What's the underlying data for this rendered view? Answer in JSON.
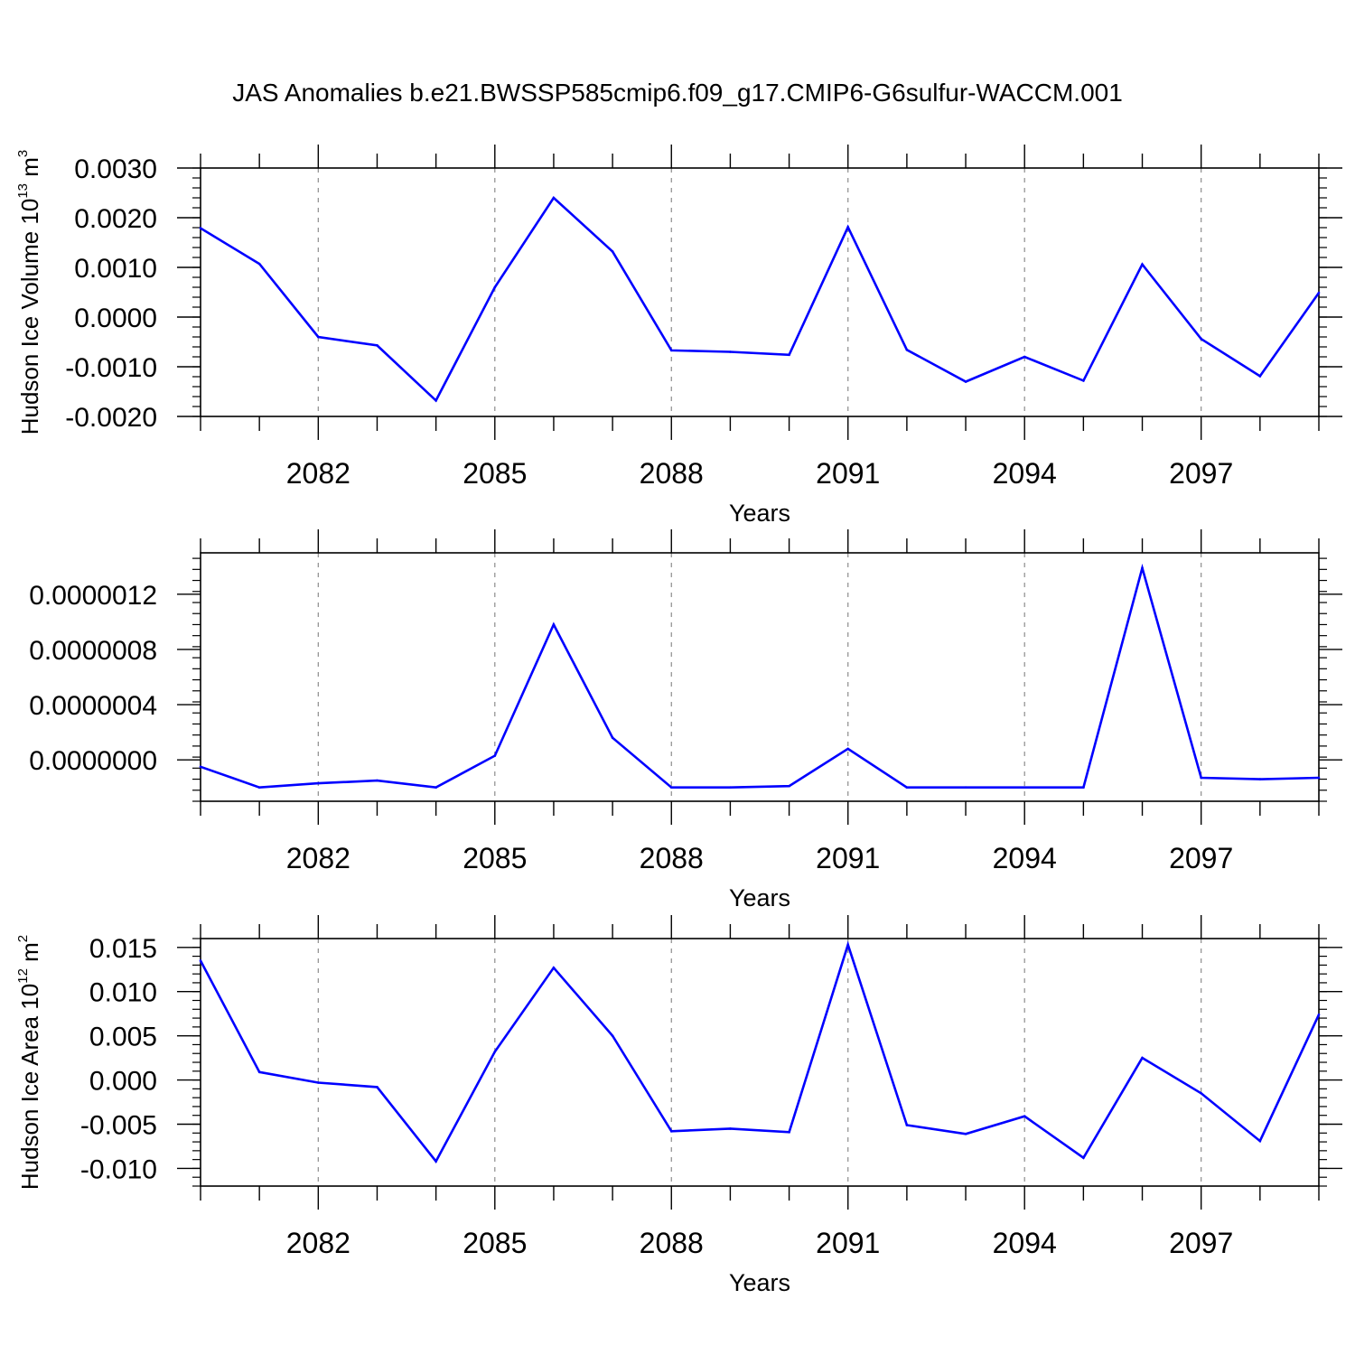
{
  "title": "JAS Anomalies b.e21.BWSSP585cmip6.f09_g17.CMIP6-G6sulfur-WACCM.001",
  "colors": {
    "line": "#0000ff",
    "axis": "#000000",
    "grid": "#8c8c8c"
  },
  "chart_data": [
    {
      "type": "line",
      "xlabel": "Years",
      "ylabel": {
        "text": "Hudson Ice Volume 10",
        "sup1": "13",
        "mid": " m",
        "sup2": "3"
      },
      "xlim": [
        2080,
        2099
      ],
      "ylim": [
        -0.002,
        0.003
      ],
      "xticks": [
        2082,
        2085,
        2088,
        2091,
        2094,
        2097
      ],
      "xtick_labels": [
        "2082",
        "2085",
        "2088",
        "2091",
        "2094",
        "2097"
      ],
      "yticks": [
        -0.002,
        -0.001,
        0.0,
        0.001,
        0.002,
        0.003
      ],
      "ytick_labels": [
        "-0.0020",
        "-0.0010",
        "0.0000",
        "0.0010",
        "0.0020",
        "0.0030"
      ],
      "grid": "vertical dashed at labeled years",
      "x": [
        2080,
        2081,
        2082,
        2083,
        2084,
        2085,
        2086,
        2087,
        2088,
        2089,
        2090,
        2091,
        2092,
        2093,
        2094,
        2095,
        2096,
        2097,
        2098,
        2099
      ],
      "values": [
        0.00179,
        0.00107,
        -0.0004,
        -0.00057,
        -0.00168,
        0.0006,
        0.0024,
        0.00132,
        -0.00067,
        -0.0007,
        -0.00076,
        0.00181,
        -0.00066,
        -0.0013,
        -0.0008,
        -0.00128,
        0.00106,
        -0.00044,
        -0.00119,
        0.00049
      ]
    },
    {
      "type": "line",
      "xlabel": "Years",
      "ylabel": null,
      "xlim": [
        2080,
        2099
      ],
      "ylim": [
        -3e-07,
        1.5e-06
      ],
      "xticks": [
        2082,
        2085,
        2088,
        2091,
        2094,
        2097
      ],
      "xtick_labels": [
        "2082",
        "2085",
        "2088",
        "2091",
        "2094",
        "2097"
      ],
      "yticks": [
        0.0,
        4e-07,
        8e-07,
        1.2e-06
      ],
      "ytick_labels": [
        "0.0000000",
        "0.0000004",
        "0.0000008",
        "0.0000012"
      ],
      "grid": "vertical dashed at labeled years",
      "x": [
        2080,
        2081,
        2082,
        2083,
        2084,
        2085,
        2086,
        2087,
        2088,
        2089,
        2090,
        2091,
        2092,
        2093,
        2094,
        2095,
        2096,
        2097,
        2098,
        2099
      ],
      "values": [
        -5e-08,
        -2e-07,
        -1.7e-07,
        -1.5e-07,
        -2e-07,
        3e-08,
        9.8e-07,
        1.6e-07,
        -2e-07,
        -2e-07,
        -1.9e-07,
        8e-08,
        -2e-07,
        -2e-07,
        -2e-07,
        -2e-07,
        1.39e-06,
        -1.3e-07,
        -1.4e-07,
        -1.3e-07
      ]
    },
    {
      "type": "line",
      "xlabel": "Years",
      "ylabel": {
        "text": "Hudson Ice Area 10",
        "sup1": "12",
        "mid": " m",
        "sup2": "2"
      },
      "xlim": [
        2080,
        2099
      ],
      "ylim": [
        -0.012,
        0.016
      ],
      "xticks": [
        2082,
        2085,
        2088,
        2091,
        2094,
        2097
      ],
      "xtick_labels": [
        "2082",
        "2085",
        "2088",
        "2091",
        "2094",
        "2097"
      ],
      "yticks": [
        -0.01,
        -0.005,
        0.0,
        0.005,
        0.01,
        0.015
      ],
      "ytick_labels": [
        "-0.010",
        "-0.005",
        "0.000",
        "0.005",
        "0.010",
        "0.015"
      ],
      "grid": "vertical dashed at labeled years",
      "x": [
        2080,
        2081,
        2082,
        2083,
        2084,
        2085,
        2086,
        2087,
        2088,
        2089,
        2090,
        2091,
        2092,
        2093,
        2094,
        2095,
        2096,
        2097,
        2098,
        2099
      ],
      "values": [
        0.0135,
        0.0009,
        -0.0003,
        -0.0008,
        -0.0092,
        0.0032,
        0.0127,
        0.005,
        -0.0058,
        -0.0055,
        -0.0059,
        0.0153,
        -0.0051,
        -0.0061,
        -0.0041,
        -0.0088,
        0.0025,
        -0.0015,
        -0.0069,
        0.0074
      ]
    }
  ]
}
